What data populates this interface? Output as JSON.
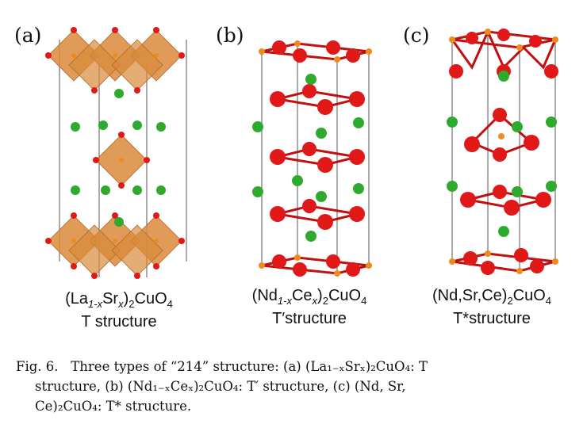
{
  "panels": [
    {
      "label": "(a)",
      "formula_parts": [
        "(La",
        "1-x",
        "Sr",
        "x",
        ")",
        "2",
        "CuO",
        "4"
      ],
      "name": "T structure"
    },
    {
      "label": "(b)",
      "formula_parts": [
        "(Nd",
        "1-x",
        "Ce",
        "x",
        ")",
        "2",
        "CuO",
        "4"
      ],
      "name": "T′structure"
    },
    {
      "label": "(c)",
      "formula_parts": [
        "(Nd,Sr,Ce)",
        "",
        "",
        "",
        "",
        "2",
        "CuO",
        "4"
      ],
      "name": "T*structure"
    }
  ],
  "caption": {
    "fig": "Fig. 6.",
    "lines": [
      "Three types of “214” structure: (a) (La₁₋ₓSrₓ)₂CuO₄: T",
      "structure, (b) (Nd₁₋ₓCeₓ)₂CuO₄: T′ structure, (c) (Nd, Sr,",
      "Ce)₂CuO₄: T* structure."
    ]
  },
  "colors": {
    "octahedron": "#d98a3a",
    "oxygen": "#e01818",
    "copper": "#f08a1e",
    "rare_earth": "#2eaa2e",
    "cell_line": "#555555"
  }
}
